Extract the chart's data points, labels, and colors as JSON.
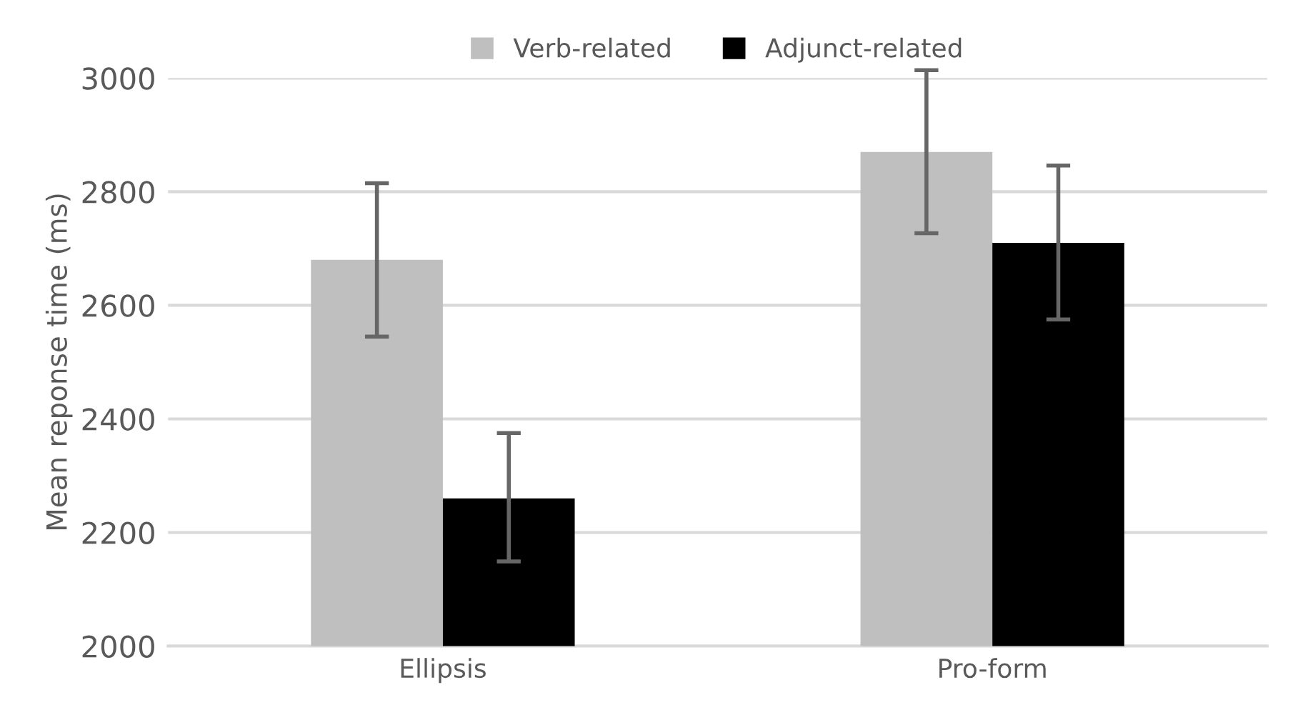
{
  "chart_data": {
    "type": "bar",
    "ylabel": "Mean reponse time (ms)",
    "categories": [
      "Ellipsis",
      "Pro-form"
    ],
    "series": [
      {
        "name": "Verb-related",
        "color": "#bfbfbf",
        "values": [
          2680,
          2870
        ],
        "errors": [
          [
            2545,
            2815
          ],
          [
            2727,
            3014
          ]
        ]
      },
      {
        "name": "Adjunct-related",
        "color": "#000000",
        "values": [
          2260,
          2710
        ],
        "errors": [
          [
            2149,
            2375
          ],
          [
            2575,
            2846
          ]
        ]
      }
    ],
    "ylim": [
      2000,
      3000
    ],
    "yticks": [
      2000,
      2200,
      2400,
      2600,
      2800,
      3000
    ],
    "grid": "y",
    "legend": "top"
  }
}
